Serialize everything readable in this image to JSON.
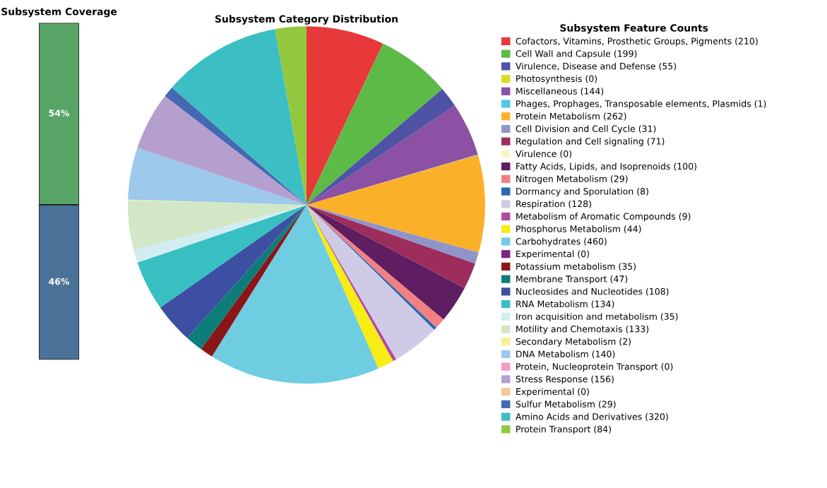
{
  "chart_data": [
    {
      "type": "bar",
      "title": "Subsystem Coverage",
      "stacked": true,
      "categories": [
        null
      ],
      "series": [
        {
          "color": "#4a7298",
          "values": [
            46
          ],
          "value_labels": [
            "46%"
          ]
        },
        {
          "color": "#57a466",
          "values": [
            54
          ],
          "value_labels": [
            "54%"
          ]
        }
      ]
    },
    {
      "type": "pie",
      "title": "Subsystem Category Distribution",
      "legend_title": "Subsystem Feature Counts",
      "legend": "right",
      "categories": [
        "Cofactors, Vitamins, Prosthetic Groups, Pigments (210)",
        "Cell Wall and Capsule (199)",
        "Virulence, Disease and Defense (55)",
        "Photosynthesis (0)",
        "Miscellaneous (144)",
        "Phages, Prophages, Transposable elements, Plasmids (1)",
        "Protein Metabolism (262)",
        "Cell Division and Cell Cycle (31)",
        "Regulation and Cell signaling (71)",
        "Virulence (0)",
        "Fatty Acids, Lipids, and Isoprenoids (100)",
        "Nitrogen Metabolism (29)",
        "Dormancy and Sporulation (8)",
        "Respiration (128)",
        "Metabolism of Aromatic Compounds (9)",
        "Phosphorus Metabolism (44)",
        "Carbohydrates (460)",
        "Experimental (0)",
        "Potassium metabolism (35)",
        "Membrane Transport (47)",
        "Nucleosides and Nucleotides (108)",
        "RNA Metabolism (134)",
        "Iron acquisition and metabolism (35)",
        "Motility and Chemotaxis (133)",
        "Secondary Metabolism (2)",
        "DNA Metabolism (140)",
        "Protein, Nucleoprotein Transport (0)",
        "Stress Response (156)",
        "Experimental (0)",
        "Sulfur Metabolism (29)",
        "Amino Acids and Derivatives (320)",
        "Protein Transport (84)"
      ],
      "values": [
        210,
        199,
        55,
        0,
        144,
        1,
        262,
        31,
        71,
        0,
        100,
        29,
        8,
        128,
        9,
        44,
        460,
        0,
        35,
        47,
        108,
        134,
        35,
        133,
        2,
        140,
        0,
        156,
        0,
        29,
        320,
        84
      ],
      "colors": [
        "#e8393a",
        "#5cbb46",
        "#4e53a6",
        "#dcdc1e",
        "#8c50a5",
        "#52c8e8",
        "#fbb02a",
        "#9095c9",
        "#9c2d5c",
        "#fbf5c8",
        "#5f1d62",
        "#f28080",
        "#2a66b0",
        "#cfcbe6",
        "#b24aa0",
        "#f7ec13",
        "#6ecde0",
        "#7b2383",
        "#8b1618",
        "#0c7d79",
        "#3c4fa3",
        "#38bfc1",
        "#d2ecf3",
        "#d1e7c6",
        "#f6f19a",
        "#9cc9ec",
        "#f59ac4",
        "#b59fcf",
        "#fac796",
        "#4468b2",
        "#3bbfc4",
        "#93c83e"
      ]
    }
  ]
}
